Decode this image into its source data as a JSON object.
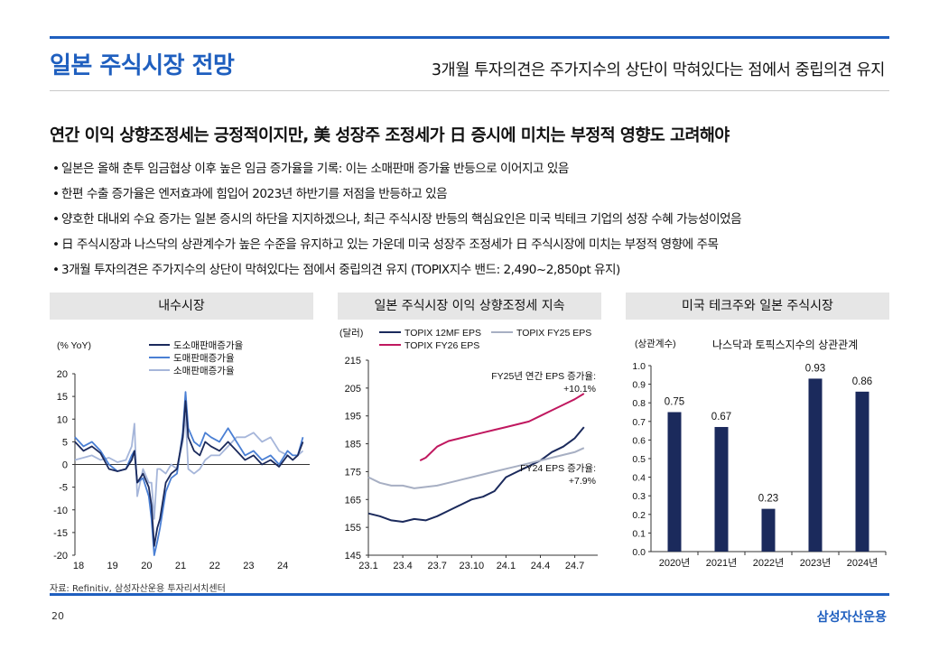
{
  "header": {
    "title": "일본 주식시장 전망",
    "subtitle": "3개월 투자의견은 주가지수의 상단이 막혀있다는 점에서 중립의견 유지",
    "headline": "연간 이익 상향조정세는 긍정적이지만, 美 성장주 조정세가 日 증시에 미치는 부정적 영향도 고려해야"
  },
  "bullets": [
    "일본은 올해 춘투 임금협상 이후 높은 임금 증가율을 기록: 이는 소매판매 증가율 반등으로 이어지고 있음",
    "한편 수출 증가율은 엔저효과에 힘입어 2023년 하반기를 저점을 반등하고 있음",
    "양호한 대내외 수요 증가는 일본 증시의 하단을 지지하겠으나, 최근 주식시장 반등의 핵심요인은 미국 빅테크 기업의 성장 수혜 가능성이었음",
    "日 주식시장과 나스닥의 상관계수가 높은 수준을 유지하고 있는 가운데 미국 성장주 조정세가 日 주식시장에 미치는 부정적 영향에 주목",
    "3개월 투자의견은 주가지수의 상단이 막혀있다는 점에서 중립의견 유지 (TOPIX지수 밴드: 2,490~2,850pt 유지)"
  ],
  "bullet_marker": "•",
  "panels": {
    "left": "내수시장",
    "middle": "일본 주식시장 이익 상향조정세 지속",
    "right": "미국 테크주와 일본 주식시장"
  },
  "footer": {
    "source": "자료: Refinitiv, 삼성자산운용 투자리서치센터",
    "page": "20",
    "brand": "삼성자산운용"
  },
  "colors": {
    "accent": "#1f5fbf",
    "navy": "#1b2a5c",
    "blue": "#4a7fd4",
    "lightblue": "#a6b6da",
    "magenta": "#c0185f",
    "gray": "#a7afc3"
  },
  "chart_data": [
    {
      "type": "line",
      "title": "내수시장",
      "ylabel": "(% YoY)",
      "ylim": [
        -20,
        20
      ],
      "yticks": [
        -20,
        -15,
        -10,
        -5,
        0,
        5,
        10,
        15,
        20
      ],
      "xlim": [
        2018,
        2024.9
      ],
      "xticks": [
        "18",
        "19",
        "20",
        "21",
        "22",
        "23",
        "24"
      ],
      "xtick_values": [
        2018,
        2019,
        2020,
        2021,
        2022,
        2023,
        2024
      ],
      "legend": "top-center",
      "series": [
        {
          "name": "도소매판매증가율",
          "color": "#1b2a5c",
          "x": [
            2018.0,
            2018.25,
            2018.5,
            2018.75,
            2019.0,
            2019.25,
            2019.5,
            2019.67,
            2019.75,
            2019.83,
            2020.0,
            2020.17,
            2020.25,
            2020.33,
            2020.42,
            2020.5,
            2020.67,
            2020.83,
            2021.0,
            2021.17,
            2021.25,
            2021.33,
            2021.5,
            2021.67,
            2021.83,
            2022.0,
            2022.25,
            2022.5,
            2022.75,
            2023.0,
            2023.25,
            2023.5,
            2023.75,
            2024.0,
            2024.25,
            2024.4,
            2024.55,
            2024.7
          ],
          "y": [
            5,
            3,
            4,
            2.5,
            -1,
            -1.5,
            -1,
            1,
            3,
            -4,
            -2,
            -5,
            -9,
            -18,
            -14,
            -12,
            -4,
            -2,
            -1,
            6,
            14,
            6,
            3,
            2,
            5,
            4,
            3,
            5,
            3,
            1,
            2,
            0,
            1,
            -0.5,
            2,
            1,
            2,
            5
          ]
        },
        {
          "name": "도매판매증가율",
          "color": "#4a7fd4",
          "x": [
            2018.0,
            2018.25,
            2018.5,
            2018.75,
            2019.0,
            2019.25,
            2019.5,
            2019.67,
            2019.75,
            2019.83,
            2020.0,
            2020.17,
            2020.25,
            2020.33,
            2020.42,
            2020.5,
            2020.67,
            2020.83,
            2021.0,
            2021.17,
            2021.25,
            2021.33,
            2021.5,
            2021.67,
            2021.83,
            2022.0,
            2022.25,
            2022.5,
            2022.75,
            2023.0,
            2023.25,
            2023.5,
            2023.75,
            2024.0,
            2024.25,
            2024.4,
            2024.55,
            2024.7
          ],
          "y": [
            6,
            4,
            5,
            3,
            0,
            -1.5,
            -1,
            2,
            3,
            -4,
            -3,
            -7,
            -12,
            -20,
            -17,
            -14,
            -6,
            -3,
            -2,
            7,
            16,
            8,
            5,
            4,
            7,
            6,
            5,
            8,
            5,
            2,
            3,
            1,
            2,
            0,
            3,
            2,
            2,
            6
          ]
        },
        {
          "name": "소매판매증가율",
          "color": "#a6b6da",
          "x": [
            2018.0,
            2018.25,
            2018.5,
            2018.75,
            2019.0,
            2019.25,
            2019.5,
            2019.67,
            2019.75,
            2019.83,
            2020.0,
            2020.17,
            2020.25,
            2020.33,
            2020.42,
            2020.5,
            2020.67,
            2020.83,
            2021.0,
            2021.17,
            2021.25,
            2021.33,
            2021.5,
            2021.67,
            2021.83,
            2022.0,
            2022.25,
            2022.5,
            2022.75,
            2023.0,
            2023.25,
            2023.5,
            2023.75,
            2024.0,
            2024.25,
            2024.4,
            2024.55,
            2024.7
          ],
          "y": [
            1,
            1.5,
            2,
            1,
            1.5,
            0.5,
            1,
            4,
            9,
            -7,
            -1,
            -4,
            -4,
            -12,
            -1,
            -1,
            -2,
            0,
            -1,
            5,
            11,
            -1,
            -2,
            -1,
            1,
            2,
            2,
            4,
            6,
            6,
            7,
            5,
            6,
            3,
            2,
            1,
            2,
            3
          ]
        }
      ]
    },
    {
      "type": "line",
      "title": "일본 주식시장 이익 상향조정세 지속",
      "ylabel": "(달러)",
      "ylim": [
        145,
        215
      ],
      "yticks": [
        145,
        155,
        165,
        175,
        185,
        195,
        205,
        215
      ],
      "xlim": [
        0,
        20
      ],
      "xticks": [
        "23.1",
        "23.4",
        "23.7",
        "23.10",
        "24.1",
        "24.4",
        "24.7"
      ],
      "xtick_values": [
        0,
        3,
        6,
        9,
        12,
        15,
        18
      ],
      "legend": "top",
      "annotations": [
        {
          "text_line1": "FY25년 연간 EPS 증가율:",
          "text_line2": "+10.1%",
          "near_series": "TOPIX FY26 EPS"
        },
        {
          "text_line1": "FY24 EPS 증가율:",
          "text_line2": "+7.9%",
          "near_series": "TOPIX FY25 EPS"
        }
      ],
      "series": [
        {
          "name": "TOPIX 12MF EPS",
          "color": "#1b2a5c",
          "x": [
            0,
            1,
            2,
            3,
            4,
            5,
            6,
            7,
            8,
            9,
            10,
            11,
            12,
            13,
            14,
            15,
            16,
            17,
            18,
            18.8
          ],
          "y": [
            160,
            159,
            157.5,
            157,
            158,
            157.5,
            159,
            161,
            163,
            165,
            166,
            168,
            173,
            175,
            177,
            179,
            182,
            184,
            187,
            191
          ]
        },
        {
          "name": "TOPIX FY25 EPS",
          "color": "#a7afc3",
          "x": [
            0,
            1,
            2,
            3,
            4,
            5,
            6,
            7,
            8,
            9,
            10,
            11,
            12,
            13,
            14,
            15,
            16,
            17,
            18,
            18.8
          ],
          "y": [
            173,
            171,
            170,
            170,
            169,
            169.5,
            170,
            171,
            172,
            173,
            174,
            175,
            176,
            177,
            178,
            179,
            180,
            181,
            182,
            183.5
          ]
        },
        {
          "name": "TOPIX FY26 EPS",
          "color": "#c0185f",
          "x": [
            4.5,
            5,
            6,
            7,
            8,
            9,
            10,
            11,
            12,
            13,
            14,
            15,
            16,
            17,
            18,
            18.8
          ],
          "y": [
            179,
            180,
            184,
            186,
            187,
            188,
            189,
            190,
            191,
            192,
            193,
            195,
            197,
            199,
            201,
            203
          ]
        }
      ]
    },
    {
      "type": "bar",
      "title": "나스닥과 토픽스지수의 상관관계",
      "ylabel": "(상관계수)",
      "ylim": [
        0,
        1.0
      ],
      "yticks": [
        "0.0",
        "0.1",
        "0.2",
        "0.3",
        "0.4",
        "0.5",
        "0.6",
        "0.7",
        "0.8",
        "0.9",
        "1.0"
      ],
      "ytick_values": [
        0,
        0.1,
        0.2,
        0.3,
        0.4,
        0.5,
        0.6,
        0.7,
        0.8,
        0.9,
        1.0
      ],
      "categories": [
        "2020년",
        "2021년",
        "2022년",
        "2023년",
        "2024년"
      ],
      "values": [
        0.75,
        0.67,
        0.23,
        0.93,
        0.86
      ],
      "labels": [
        "0.75",
        "0.67",
        "0.23",
        "0.93",
        "0.86"
      ],
      "color": "#1b2a5c"
    }
  ]
}
